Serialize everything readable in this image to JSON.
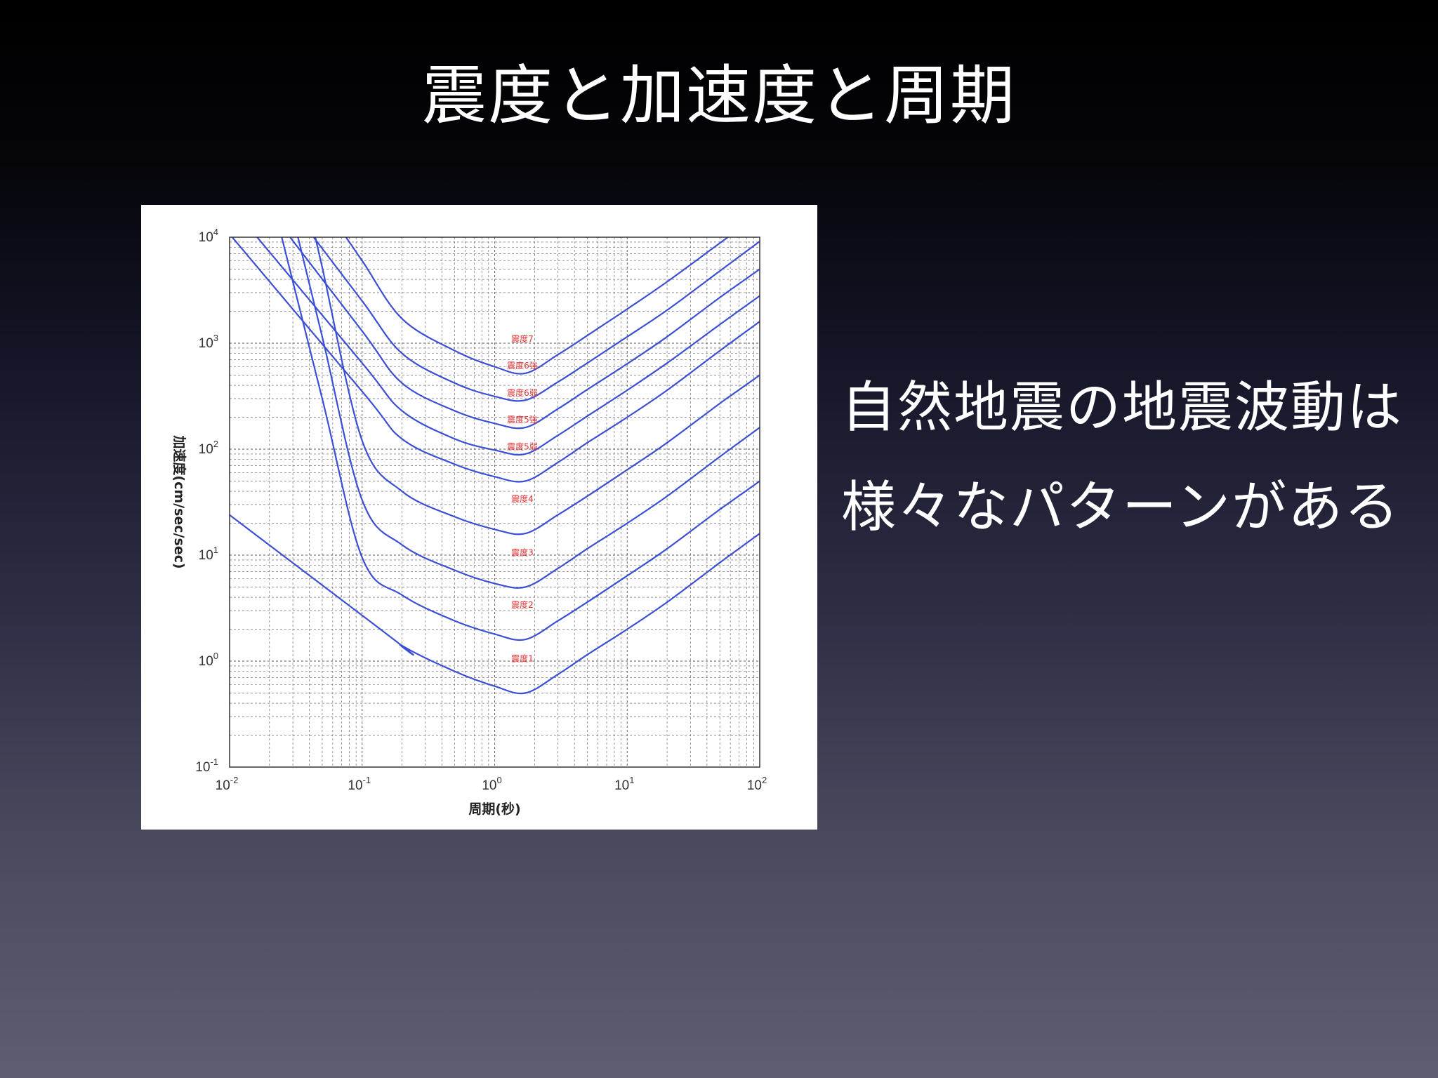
{
  "slide": {
    "title": "震度と加速度と周期",
    "body_lines": [
      "自然地震の地震波動は",
      "様々なパターンがある"
    ]
  },
  "colors": {
    "curve": "#3a4fd6",
    "curve_label": "#e03030",
    "grid": "#555555"
  },
  "chart_data": {
    "type": "line",
    "xlabel": "周期(秒)",
    "ylabel": "加速度(cm/sec/sec)",
    "x_scale": "log",
    "y_scale": "log",
    "xlim": [
      0.01,
      100
    ],
    "ylim": [
      0.1,
      10000
    ],
    "grid": true,
    "x_ticks": [
      {
        "base": "10",
        "exp": "-2"
      },
      {
        "base": "10",
        "exp": "-1"
      },
      {
        "base": "10",
        "exp": "0"
      },
      {
        "base": "10",
        "exp": "1"
      },
      {
        "base": "10",
        "exp": "2"
      }
    ],
    "y_ticks": [
      {
        "base": "10",
        "exp": "-1"
      },
      {
        "base": "10",
        "exp": "0"
      },
      {
        "base": "10",
        "exp": "1"
      },
      {
        "base": "10",
        "exp": "2"
      },
      {
        "base": "10",
        "exp": "3"
      },
      {
        "base": "10",
        "exp": "4"
      }
    ],
    "x": [
      0.01,
      0.02,
      0.03,
      0.05,
      0.1,
      0.2,
      0.5,
      1.0,
      1.7,
      3,
      5,
      10,
      20,
      50,
      100
    ],
    "series": [
      {
        "label": "震度1",
        "values": [
          null,
          null,
          null,
          null,
          2.7,
          1.4,
          0.8,
          0.58,
          0.5,
          0.75,
          1.15,
          2.0,
          3.6,
          8.5,
          16
        ]
      },
      {
        "label": "震度2",
        "values": [
          null,
          null,
          null,
          300,
          9.5,
          4.2,
          2.4,
          1.8,
          1.6,
          2.4,
          3.6,
          6.4,
          11.5,
          27,
          50
        ]
      },
      {
        "label": "震度3",
        "values": [
          null,
          null,
          null,
          1150,
          33,
          12.5,
          7.2,
          5.4,
          5.0,
          7.5,
          11.5,
          20,
          36,
          85,
          160
        ]
      },
      {
        "label": "震度4",
        "values": [
          null,
          null,
          null,
          5200,
          120,
          40,
          23,
          17.5,
          16,
          24,
          36,
          64,
          115,
          270,
          500
        ]
      },
      {
        "label": "震度5弱",
        "values": [
          null,
          null,
          null,
          null,
          350,
          125,
          72,
          55,
          50,
          75,
          115,
          200,
          360,
          850,
          1600
        ]
      },
      {
        "label": "震度5強",
        "values": [
          null,
          null,
          null,
          null,
          650,
          230,
          125,
          98,
          90,
          135,
          205,
          360,
          650,
          1500,
          2800
        ]
      },
      {
        "label": "震度6弱",
        "values": [
          null,
          null,
          null,
          null,
          1300,
          420,
          230,
          175,
          160,
          240,
          365,
          640,
          1150,
          2700,
          5000
        ]
      },
      {
        "label": "震度6強",
        "values": [
          null,
          null,
          null,
          null,
          2500,
          800,
          420,
          315,
          290,
          430,
          650,
          1150,
          2050,
          4800,
          null
        ]
      },
      {
        "label": "震度7",
        "values": [
          null,
          null,
          null,
          null,
          6000,
          1700,
          850,
          600,
          520,
          780,
          1180,
          2100,
          3800,
          8800,
          null
        ]
      }
    ]
  }
}
